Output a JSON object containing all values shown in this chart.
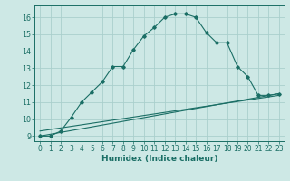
{
  "xlabel": "Humidex (Indice chaleur)",
  "ylabel": "",
  "bg_color": "#cde8e5",
  "grid_color": "#aacfcc",
  "line_color": "#1a6e65",
  "xlim": [
    -0.5,
    23.5
  ],
  "ylim": [
    8.7,
    16.7
  ],
  "xticks": [
    0,
    1,
    2,
    3,
    4,
    5,
    6,
    7,
    8,
    9,
    10,
    11,
    12,
    13,
    14,
    15,
    16,
    17,
    18,
    19,
    20,
    21,
    22,
    23
  ],
  "yticks": [
    9,
    10,
    11,
    12,
    13,
    14,
    15,
    16
  ],
  "curve1_x": [
    0,
    1,
    2,
    3,
    4,
    5,
    6,
    7,
    8,
    9,
    10,
    11,
    12,
    13,
    14,
    15,
    16,
    17,
    18,
    19,
    20,
    21,
    22,
    23
  ],
  "curve1_y": [
    9.0,
    9.0,
    9.3,
    10.1,
    11.0,
    11.6,
    12.2,
    13.1,
    13.1,
    14.1,
    14.9,
    15.4,
    16.0,
    16.2,
    16.2,
    16.0,
    15.1,
    14.5,
    14.5,
    13.1,
    12.5,
    11.4,
    11.4,
    11.5
  ],
  "line2_x": [
    0,
    23
  ],
  "line2_y": [
    9.0,
    11.5
  ],
  "line3_x": [
    0,
    23
  ],
  "line3_y": [
    9.3,
    11.4
  ],
  "tick_fontsize": 5.5,
  "xlabel_fontsize": 6.5
}
